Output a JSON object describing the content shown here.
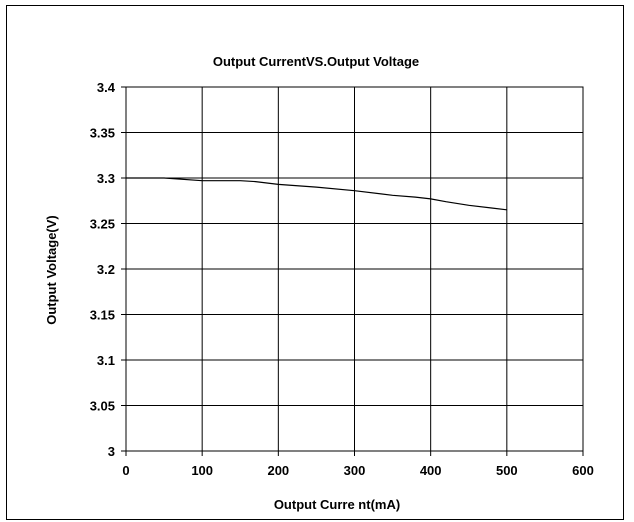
{
  "chart_data": {
    "type": "line",
    "title": "Output CurrentVS.Output Voltage",
    "xlabel": "Output Curre nt(mA)",
    "ylabel": "Output Voltage(V)",
    "xlim": [
      0,
      600
    ],
    "ylim": [
      3,
      3.4
    ],
    "x_ticks": [
      "0",
      "100",
      "200",
      "300",
      "400",
      "500",
      "600"
    ],
    "y_ticks": [
      "3",
      "3.05",
      "3.1",
      "3.15",
      "3.2",
      "3.25",
      "3.3",
      "3.35",
      "3.4"
    ],
    "grid": true,
    "series": [
      {
        "color": "#000000",
        "x": [
          0,
          50,
          100,
          150,
          170,
          200,
          250,
          300,
          350,
          380,
          400,
          420,
          450,
          480,
          500
        ],
        "y": [
          3.3,
          3.3,
          3.297,
          3.297,
          3.296,
          3.293,
          3.29,
          3.286,
          3.281,
          3.279,
          3.277,
          3.274,
          3.27,
          3.267,
          3.265
        ]
      }
    ]
  }
}
